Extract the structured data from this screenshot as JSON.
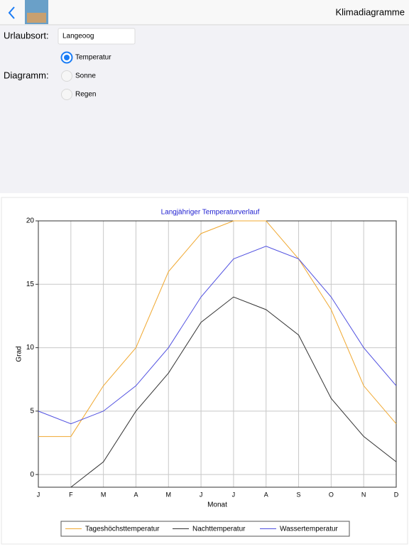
{
  "header": {
    "title": "Klimadiagramme"
  },
  "form": {
    "location_label": "Urlaubsort:",
    "location_value": "Langeoog",
    "diagram_label": "Diagramm:",
    "options": [
      "Temperatur",
      "Sonne",
      "Regen"
    ],
    "selected": 0
  },
  "chart_data": {
    "type": "line",
    "title": "Langjähriger Temperaturverlauf",
    "x_label": "Monat",
    "y_label": "Grad",
    "categories": [
      "J",
      "F",
      "M",
      "A",
      "M",
      "J",
      "J",
      "A",
      "S",
      "O",
      "N",
      "D"
    ],
    "ylim": [
      -1,
      20
    ],
    "yticks": [
      0,
      5,
      10,
      15,
      20
    ],
    "grid": true,
    "legend": "bottom",
    "series": [
      {
        "name": "Tageshöchsttemperatur",
        "color": "#f0a830",
        "values": [
          3,
          3,
          7,
          10,
          16,
          19,
          20,
          20,
          17,
          13,
          7,
          4
        ]
      },
      {
        "name": "Nachttemperatur",
        "color": "#333333",
        "values": [
          -1,
          -1,
          1,
          5,
          8,
          12,
          14,
          13,
          11,
          6,
          3,
          1
        ]
      },
      {
        "name": "Wassertemperatur",
        "color": "#5050e0",
        "values": [
          5,
          4,
          5,
          7,
          10,
          14,
          17,
          18,
          17,
          14,
          10,
          7
        ]
      }
    ]
  }
}
